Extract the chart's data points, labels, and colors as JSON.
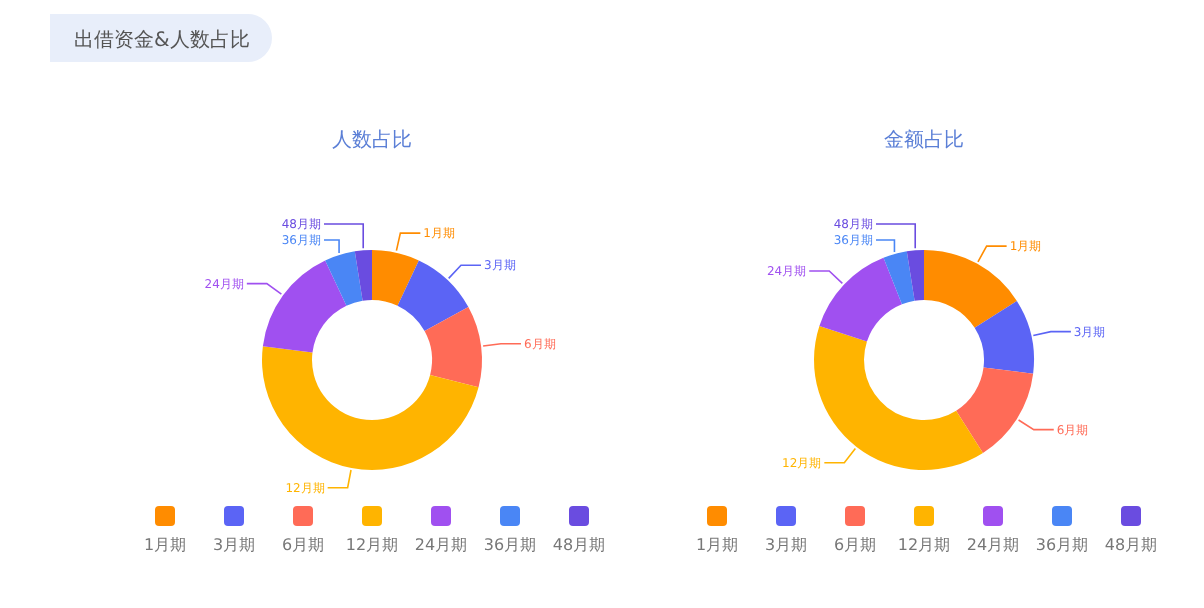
{
  "chart_data": [
    {
      "type": "donut",
      "title": "人数占比",
      "annotations": [
        "出借资金&人数占比"
      ],
      "legend": "bottom",
      "categories": [
        "1月期",
        "3月期",
        "6月期",
        "12月期",
        "24月期",
        "36月期",
        "48月期"
      ],
      "values": [
        7,
        10,
        12,
        48,
        16,
        4.5,
        2.5
      ],
      "colors": [
        "#ff8c00",
        "#5b64f5",
        "#ff6b57",
        "#ffb400",
        "#a050f0",
        "#4a86f5",
        "#6a4ce0"
      ]
    },
    {
      "type": "donut",
      "title": "金额占比",
      "legend": "bottom",
      "categories": [
        "1月期",
        "3月期",
        "6月期",
        "12月期",
        "24月期",
        "36月期",
        "48月期"
      ],
      "values": [
        16,
        11,
        14,
        39,
        14,
        3.5,
        2.5
      ],
      "colors": [
        "#ff8c00",
        "#5b64f5",
        "#ff6b57",
        "#ffb400",
        "#a050f0",
        "#4a86f5",
        "#6a4ce0"
      ]
    }
  ]
}
